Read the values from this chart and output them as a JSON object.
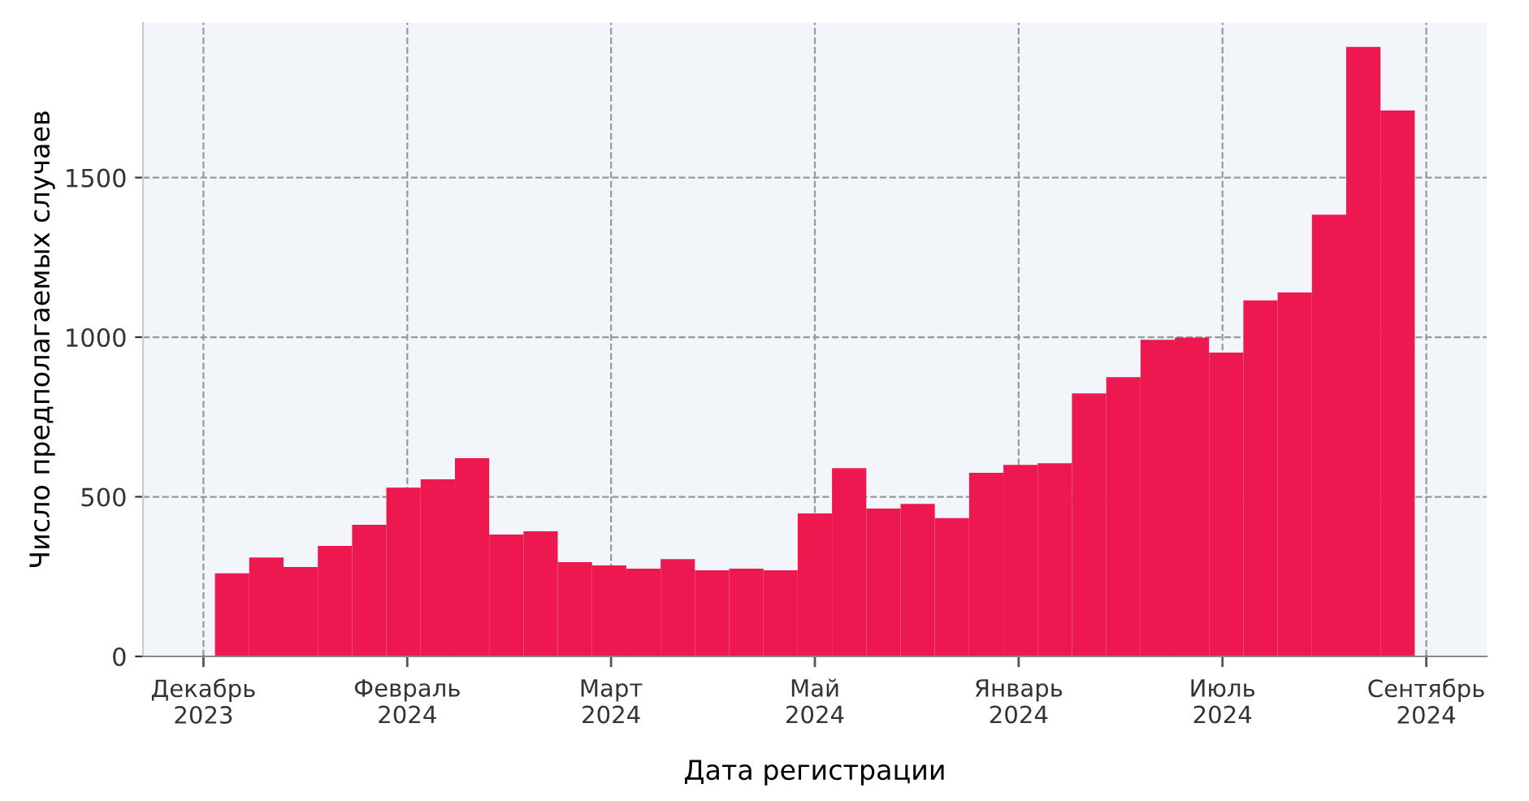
{
  "chart_data": {
    "type": "bar",
    "xlabel": "Дата регистрации",
    "ylabel": "Число предполагаемых случаев",
    "categories": [
      null,
      null,
      null,
      null,
      null,
      null,
      null,
      null,
      null,
      null,
      null,
      null,
      null,
      null,
      null,
      null,
      null,
      null,
      null,
      null,
      null,
      null,
      null,
      null,
      null,
      null,
      null,
      null,
      null,
      null,
      null,
      null,
      null,
      null,
      null
    ],
    "values": [
      260,
      310,
      280,
      346,
      412,
      529,
      555,
      621,
      382,
      392,
      295,
      285,
      275,
      305,
      270,
      275,
      270,
      448,
      590,
      463,
      478,
      433,
      575,
      600,
      605,
      824,
      875,
      992,
      999,
      952,
      1115,
      1140,
      1384,
      1909,
      1710
    ],
    "color": "#ee1850",
    "annotations": [
      "Декабрь\n2023",
      "Февраль\n2024",
      "Март\n2024",
      "Май\n2024",
      "Январь\n2024",
      "Июль\n2024",
      "Сентябрь\n2024"
    ],
    "ylim": [
      0,
      1985
    ],
    "yticks": [
      0,
      500,
      1000,
      1500
    ],
    "grid": true
  }
}
